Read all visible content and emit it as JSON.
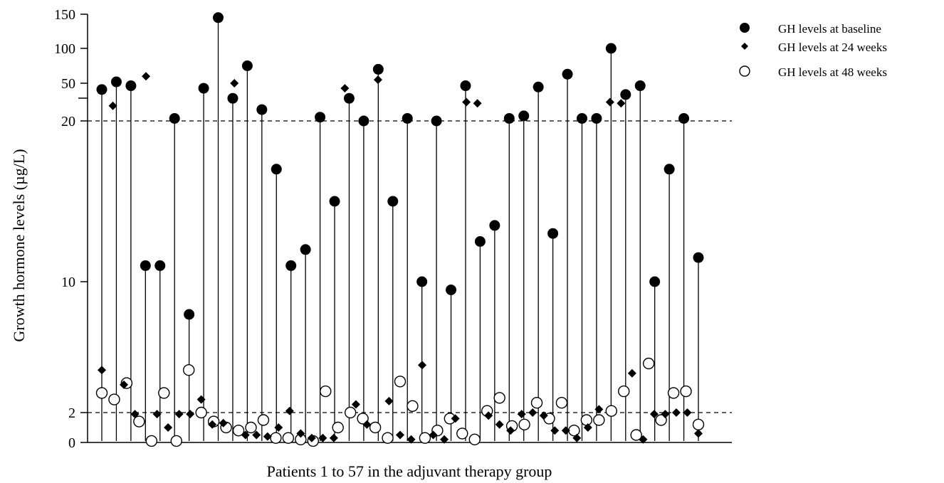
{
  "chart_data": {
    "type": "scatter",
    "title": "",
    "xlabel": "Patients 1 to 57 in the adjuvant therapy group",
    "ylabel": "Growth hormone levels (µg/L)",
    "yticks": [
      "0",
      "2",
      "10",
      "20",
      "50",
      "100",
      "150"
    ],
    "reference_lines": [
      2,
      20
    ],
    "y_scale": "broken: linear 0-20, compressed 20-150",
    "grid": false,
    "legend_position": "top-right",
    "series": [
      {
        "name": "GH levels at baseline",
        "marker": "filled-circle",
        "values": [
          45,
          52,
          48,
          11,
          11,
          22,
          8,
          46,
          145,
          38,
          75,
          29,
          17,
          11,
          12,
          23,
          15,
          38,
          20,
          70,
          15,
          22,
          10,
          20,
          9.5,
          48,
          12.5,
          13.5,
          22,
          24,
          47,
          13,
          63,
          22,
          22,
          100,
          41,
          48,
          10,
          17,
          22,
          11.5
        ]
      },
      {
        "name": "GH levels at 24 weeks",
        "marker": "filled-diamond",
        "values": [
          4.6,
          32,
          3.7,
          1.9,
          60,
          1.9,
          1.0,
          1.9,
          1.9,
          2.8,
          1.2,
          1.3,
          50,
          0.5,
          0.5,
          0.4,
          1.0,
          2.1,
          0.6,
          0.3,
          0.3,
          0.3,
          46,
          2.5,
          1.2,
          55,
          2.7,
          0.5,
          0.2,
          4.9,
          0.5,
          0.2,
          1.6,
          35,
          34,
          1.8,
          1.2,
          0.8,
          1.9,
          2.0,
          1.8,
          0.8,
          0.8,
          0.3,
          1.0,
          2.2,
          35,
          34,
          4.4,
          0.2,
          1.9,
          1.9,
          2.0,
          2.0,
          0.6
        ]
      },
      {
        "name": "GH levels at 48 weeks",
        "marker": "open-circle",
        "values": [
          3.2,
          2.8,
          3.8,
          1.4,
          0.1,
          3.2,
          0.1,
          4.6,
          2.0,
          1.4,
          1.0,
          0.8,
          1.0,
          1.5,
          0.3,
          0.3,
          0.2,
          0.1,
          3.3,
          1.0,
          2.0,
          1.6,
          1.0,
          0.3,
          3.9,
          2.4,
          0.3,
          0.8,
          1.6,
          0.6,
          0.2,
          2.1,
          2.9,
          1.1,
          1.2,
          2.6,
          1.6,
          2.6,
          0.8,
          1.5,
          1.5,
          2.1,
          3.3,
          0.5,
          5.0,
          1.5,
          3.2,
          3.3,
          1.2
        ]
      }
    ]
  }
}
